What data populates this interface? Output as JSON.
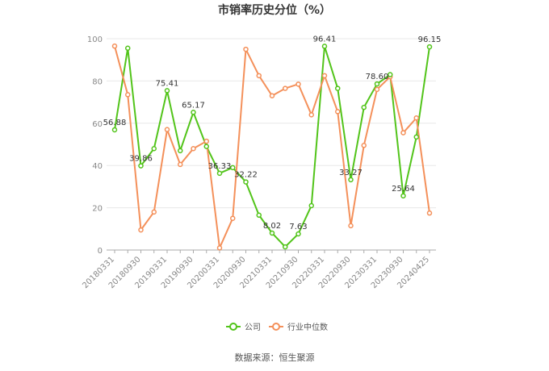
{
  "chart_data": {
    "type": "line",
    "title": "市销率历史分位（%）",
    "ylim": [
      0,
      100
    ],
    "yticks": [
      "0",
      "20",
      "40",
      "60",
      "80",
      "100"
    ],
    "xtick_labels": [
      "20180331",
      "20180930",
      "20190331",
      "20190930",
      "20200331",
      "20200930",
      "20210331",
      "20210930",
      "20220331",
      "20220930",
      "20230331",
      "20230930",
      "20240425"
    ],
    "grid": true,
    "legend_position": "bottom-center",
    "series": [
      {
        "name": "公司",
        "color": "#52c41a",
        "values": [
          56.88,
          95.5,
          39.86,
          48.0,
          75.41,
          47.0,
          65.17,
          49.0,
          36.33,
          39.0,
          32.22,
          16.5,
          8.02,
          1.5,
          7.63,
          21.0,
          96.41,
          76.5,
          33.27,
          67.5,
          78.6,
          83.0,
          25.64,
          53.5,
          96.15
        ]
      },
      {
        "name": "行业中位数",
        "color": "#f4905a",
        "values": [
          96.5,
          73.5,
          9.5,
          18.0,
          57.0,
          40.5,
          48.0,
          51.5,
          1.0,
          15.0,
          95.0,
          82.5,
          73.0,
          76.5,
          78.5,
          64.0,
          82.5,
          65.5,
          11.5,
          49.5,
          76.0,
          82.0,
          55.5,
          62.5,
          17.5
        ]
      }
    ],
    "data_labels": [
      {
        "index": 0,
        "text": "56.88"
      },
      {
        "index": 2,
        "text": "39.86"
      },
      {
        "index": 4,
        "text": "75.41"
      },
      {
        "index": 6,
        "text": "65.17"
      },
      {
        "index": 8,
        "text": "36.33"
      },
      {
        "index": 10,
        "text": "32.22"
      },
      {
        "index": 12,
        "text": "8.02"
      },
      {
        "index": 14,
        "text": "7.63"
      },
      {
        "index": 16,
        "text": "96.41"
      },
      {
        "index": 18,
        "text": "33.27"
      },
      {
        "index": 20,
        "text": "78.60"
      },
      {
        "index": 22,
        "text": "25.64"
      },
      {
        "index": 24,
        "text": "96.15"
      }
    ]
  },
  "source_text": "数据来源：恒生聚源"
}
